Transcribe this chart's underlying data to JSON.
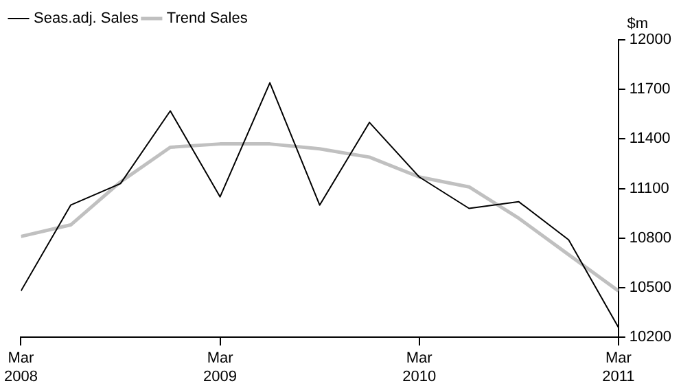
{
  "chart_data": {
    "type": "line",
    "ylabel": "$m",
    "legend": "top left",
    "line_style": "solid",
    "x": [
      "2008-03",
      "2008-06",
      "2008-09",
      "2008-12",
      "2009-03",
      "2009-06",
      "2009-09",
      "2009-12",
      "2010-03",
      "2010-06",
      "2010-09",
      "2010-12",
      "2011-03"
    ],
    "xlim": [
      "2008-03",
      "2011-03"
    ],
    "xticks": [
      {
        "value": "2008-03",
        "label": "Mar 2008"
      },
      {
        "value": "2009-03",
        "label": "Mar 2009"
      },
      {
        "value": "2010-03",
        "label": "Mar 2010"
      },
      {
        "value": "2011-03",
        "label": "Mar 2011"
      }
    ],
    "ylim": [
      10200,
      12000
    ],
    "yticks": [
      10200,
      10500,
      10800,
      11100,
      11400,
      11700,
      12000
    ],
    "series": [
      {
        "name": "Seas.adj. Sales",
        "color": "#000000",
        "values": [
          10480,
          11000,
          11130,
          11570,
          11050,
          11740,
          11000,
          11500,
          11170,
          10980,
          11020,
          10790,
          10260
        ]
      },
      {
        "name": "Trend Sales",
        "color": "#c0c0c0",
        "values": [
          10810,
          10880,
          11140,
          11350,
          11370,
          11370,
          11340,
          11290,
          11170,
          11110,
          10920,
          10700,
          10480
        ]
      }
    ]
  }
}
